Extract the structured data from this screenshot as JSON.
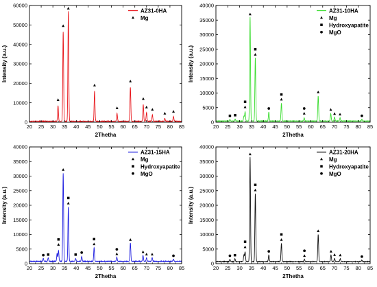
{
  "chart_data": [
    {
      "type": "line",
      "xlabel": "2Thetha",
      "ylabel": "Intensity (a.u.)",
      "xlim": [
        20,
        85
      ],
      "ylim": [
        0,
        60000
      ],
      "xticks": [
        20,
        25,
        30,
        35,
        40,
        45,
        50,
        55,
        60,
        65,
        70,
        75,
        80,
        85
      ],
      "yticks": [
        0,
        10000,
        20000,
        30000,
        40000,
        50000,
        60000
      ],
      "series": [
        {
          "name": "AZ31-0HA",
          "color": "#e8161b",
          "baseline": 500,
          "peaks": [
            {
              "x": 32.2,
              "y": 8500
            },
            {
              "x": 34.4,
              "y": 46500
            },
            {
              "x": 36.6,
              "y": 57000
            },
            {
              "x": 47.8,
              "y": 16000
            },
            {
              "x": 57.4,
              "y": 4500
            },
            {
              "x": 63.1,
              "y": 18000
            },
            {
              "x": 68.6,
              "y": 9000
            },
            {
              "x": 70.0,
              "y": 5000
            },
            {
              "x": 72.5,
              "y": 3800
            },
            {
              "x": 77.8,
              "y": 2000
            },
            {
              "x": 81.5,
              "y": 3000
            }
          ]
        }
      ],
      "legend_markers": [
        {
          "symbol": "triangle",
          "label": "Mg"
        }
      ],
      "annotations": [
        {
          "x": 32.2,
          "y": 11500,
          "symbol": "triangle"
        },
        {
          "x": 34.4,
          "y": 49500,
          "symbol": "triangle"
        },
        {
          "x": 36.6,
          "y": 58500,
          "symbol": "triangle"
        },
        {
          "x": 47.8,
          "y": 19000,
          "symbol": "triangle"
        },
        {
          "x": 57.4,
          "y": 7300,
          "symbol": "triangle"
        },
        {
          "x": 63.1,
          "y": 21000,
          "symbol": "triangle"
        },
        {
          "x": 68.6,
          "y": 12000,
          "symbol": "triangle"
        },
        {
          "x": 70.0,
          "y": 7700,
          "symbol": "triangle"
        },
        {
          "x": 72.5,
          "y": 6500,
          "symbol": "triangle"
        },
        {
          "x": 77.8,
          "y": 4500,
          "symbol": "triangle"
        },
        {
          "x": 81.5,
          "y": 5500,
          "symbol": "triangle"
        }
      ]
    },
    {
      "type": "line",
      "xlabel": "2Thetha",
      "ylabel": "Intensity (a.u.)",
      "xlim": [
        20,
        85
      ],
      "ylim": [
        0,
        40000
      ],
      "xticks": [
        20,
        25,
        30,
        35,
        40,
        45,
        50,
        55,
        60,
        65,
        70,
        75,
        80,
        85
      ],
      "yticks": [
        0,
        5000,
        10000,
        15000,
        20000,
        25000,
        30000,
        35000,
        40000
      ],
      "series": [
        {
          "name": "AZ31-10HA",
          "color": "#3adc2f",
          "baseline": 400,
          "peaks": [
            {
              "x": 25.9,
              "y": 1000
            },
            {
              "x": 28.1,
              "y": 1100
            },
            {
              "x": 31.8,
              "y": 2000
            },
            {
              "x": 32.3,
              "y": 3500
            },
            {
              "x": 34.4,
              "y": 36000
            },
            {
              "x": 36.6,
              "y": 22000
            },
            {
              "x": 42.3,
              "y": 3500
            },
            {
              "x": 47.6,
              "y": 6500
            },
            {
              "x": 57.2,
              "y": 1500
            },
            {
              "x": 63.1,
              "y": 9000
            },
            {
              "x": 68.4,
              "y": 3000
            },
            {
              "x": 70.0,
              "y": 1700
            },
            {
              "x": 72.3,
              "y": 1500
            },
            {
              "x": 81.5,
              "y": 1000
            }
          ]
        }
      ],
      "legend_markers": [
        {
          "symbol": "triangle",
          "label": "Mg"
        },
        {
          "symbol": "square",
          "label": "Hydroxyapatite"
        },
        {
          "symbol": "circle",
          "label": "MgO"
        }
      ],
      "annotations": [
        {
          "x": 25.9,
          "y": 2200,
          "symbol": "square"
        },
        {
          "x": 28.1,
          "y": 2400,
          "symbol": "square"
        },
        {
          "x": 32.3,
          "y": 5200,
          "symbol": "triangle"
        },
        {
          "x": 32.3,
          "y": 7000,
          "symbol": "square"
        },
        {
          "x": 34.4,
          "y": 37000,
          "symbol": "triangle"
        },
        {
          "x": 36.6,
          "y": 23200,
          "symbol": "triangle"
        },
        {
          "x": 36.6,
          "y": 25000,
          "symbol": "square"
        },
        {
          "x": 42.3,
          "y": 4700,
          "symbol": "circle"
        },
        {
          "x": 47.6,
          "y": 7800,
          "symbol": "triangle"
        },
        {
          "x": 47.6,
          "y": 9500,
          "symbol": "square"
        },
        {
          "x": 57.2,
          "y": 3000,
          "symbol": "triangle"
        },
        {
          "x": 57.2,
          "y": 4700,
          "symbol": "circle"
        },
        {
          "x": 63.1,
          "y": 10300,
          "symbol": "triangle"
        },
        {
          "x": 68.4,
          "y": 4300,
          "symbol": "triangle"
        },
        {
          "x": 70.0,
          "y": 2900,
          "symbol": "triangle"
        },
        {
          "x": 72.3,
          "y": 2700,
          "symbol": "triangle"
        },
        {
          "x": 81.5,
          "y": 2200,
          "symbol": "circle"
        }
      ]
    },
    {
      "type": "line",
      "xlabel": "2Thetha",
      "ylabel": "Intensity (a.u.)",
      "xlim": [
        20,
        85
      ],
      "ylim": [
        0,
        40000
      ],
      "xticks": [
        20,
        25,
        30,
        35,
        40,
        45,
        50,
        55,
        60,
        65,
        70,
        75,
        80,
        85
      ],
      "yticks": [
        0,
        5000,
        10000,
        15000,
        20000,
        25000,
        30000,
        35000,
        40000
      ],
      "series": [
        {
          "name": "AZ31-15HA",
          "color": "#1f1fe0",
          "baseline": 800,
          "peaks": [
            {
              "x": 25.9,
              "y": 1800
            },
            {
              "x": 28.0,
              "y": 2000
            },
            {
              "x": 31.8,
              "y": 3500
            },
            {
              "x": 32.4,
              "y": 4500
            },
            {
              "x": 34.4,
              "y": 31000
            },
            {
              "x": 36.6,
              "y": 19500
            },
            {
              "x": 39.7,
              "y": 1800
            },
            {
              "x": 42.3,
              "y": 2500
            },
            {
              "x": 47.6,
              "y": 5500
            },
            {
              "x": 57.3,
              "y": 2200
            },
            {
              "x": 63.1,
              "y": 7000
            },
            {
              "x": 68.5,
              "y": 2800
            },
            {
              "x": 70.0,
              "y": 2000
            },
            {
              "x": 72.4,
              "y": 2000
            },
            {
              "x": 81.5,
              "y": 1500
            }
          ]
        }
      ],
      "legend_markers": [
        {
          "symbol": "triangle",
          "label": "Mg"
        },
        {
          "symbol": "square",
          "label": "Hydroxyapatite"
        },
        {
          "symbol": "circle",
          "label": "MgO"
        }
      ],
      "annotations": [
        {
          "x": 25.9,
          "y": 2900,
          "symbol": "circle"
        },
        {
          "x": 28.0,
          "y": 3100,
          "symbol": "square"
        },
        {
          "x": 32.4,
          "y": 6500,
          "symbol": "triangle"
        },
        {
          "x": 32.4,
          "y": 8300,
          "symbol": "square"
        },
        {
          "x": 34.4,
          "y": 32200,
          "symbol": "triangle"
        },
        {
          "x": 36.6,
          "y": 20700,
          "symbol": "triangle"
        },
        {
          "x": 36.6,
          "y": 22500,
          "symbol": "square"
        },
        {
          "x": 39.7,
          "y": 3100,
          "symbol": "square"
        },
        {
          "x": 42.3,
          "y": 3800,
          "symbol": "circle"
        },
        {
          "x": 47.6,
          "y": 6700,
          "symbol": "triangle"
        },
        {
          "x": 47.6,
          "y": 8400,
          "symbol": "square"
        },
        {
          "x": 57.3,
          "y": 3300,
          "symbol": "triangle"
        },
        {
          "x": 57.3,
          "y": 4900,
          "symbol": "circle"
        },
        {
          "x": 63.1,
          "y": 8200,
          "symbol": "triangle"
        },
        {
          "x": 68.5,
          "y": 4000,
          "symbol": "triangle"
        },
        {
          "x": 70.0,
          "y": 3200,
          "symbol": "triangle"
        },
        {
          "x": 72.4,
          "y": 3200,
          "symbol": "triangle"
        },
        {
          "x": 81.5,
          "y": 2700,
          "symbol": "circle"
        }
      ]
    },
    {
      "type": "line",
      "xlabel": "2Thetha",
      "ylabel": "Intensity (a.u.)",
      "xlim": [
        20,
        85
      ],
      "ylim": [
        0,
        40000
      ],
      "xticks": [
        20,
        25,
        30,
        35,
        40,
        45,
        50,
        55,
        60,
        65,
        70,
        75,
        80,
        85
      ],
      "yticks": [
        0,
        5000,
        10000,
        15000,
        20000,
        25000,
        30000,
        35000,
        40000
      ],
      "series": [
        {
          "name": "AZ31-20HA",
          "color": "#111111",
          "baseline": 700,
          "peaks": [
            {
              "x": 25.9,
              "y": 1500
            },
            {
              "x": 28.0,
              "y": 1700
            },
            {
              "x": 31.8,
              "y": 3000
            },
            {
              "x": 32.3,
              "y": 4000
            },
            {
              "x": 34.4,
              "y": 36500
            },
            {
              "x": 36.6,
              "y": 24000
            },
            {
              "x": 42.3,
              "y": 3000
            },
            {
              "x": 47.6,
              "y": 7000
            },
            {
              "x": 57.3,
              "y": 1500
            },
            {
              "x": 63.1,
              "y": 10000
            },
            {
              "x": 68.5,
              "y": 3000
            },
            {
              "x": 70.0,
              "y": 1800
            },
            {
              "x": 72.4,
              "y": 1700
            },
            {
              "x": 81.5,
              "y": 1200
            }
          ]
        }
      ],
      "legend_markers": [
        {
          "symbol": "triangle",
          "label": "Mg"
        },
        {
          "symbol": "square",
          "label": "Hydroxyapatite"
        },
        {
          "symbol": "circle",
          "label": "MgO"
        }
      ],
      "annotations": [
        {
          "x": 25.9,
          "y": 2700,
          "symbol": "circle"
        },
        {
          "x": 28.0,
          "y": 2900,
          "symbol": "square"
        },
        {
          "x": 32.3,
          "y": 5700,
          "symbol": "triangle"
        },
        {
          "x": 32.3,
          "y": 7500,
          "symbol": "square"
        },
        {
          "x": 34.4,
          "y": 37500,
          "symbol": "triangle"
        },
        {
          "x": 36.6,
          "y": 25200,
          "symbol": "triangle"
        },
        {
          "x": 36.6,
          "y": 27000,
          "symbol": "square"
        },
        {
          "x": 42.3,
          "y": 4200,
          "symbol": "circle"
        },
        {
          "x": 47.6,
          "y": 8200,
          "symbol": "triangle"
        },
        {
          "x": 47.6,
          "y": 10000,
          "symbol": "square"
        },
        {
          "x": 57.3,
          "y": 2700,
          "symbol": "triangle"
        },
        {
          "x": 57.3,
          "y": 4400,
          "symbol": "circle"
        },
        {
          "x": 63.1,
          "y": 11200,
          "symbol": "triangle"
        },
        {
          "x": 68.5,
          "y": 4200,
          "symbol": "triangle"
        },
        {
          "x": 70.0,
          "y": 3000,
          "symbol": "triangle"
        },
        {
          "x": 72.4,
          "y": 2900,
          "symbol": "triangle"
        },
        {
          "x": 81.5,
          "y": 2400,
          "symbol": "circle"
        }
      ]
    }
  ]
}
